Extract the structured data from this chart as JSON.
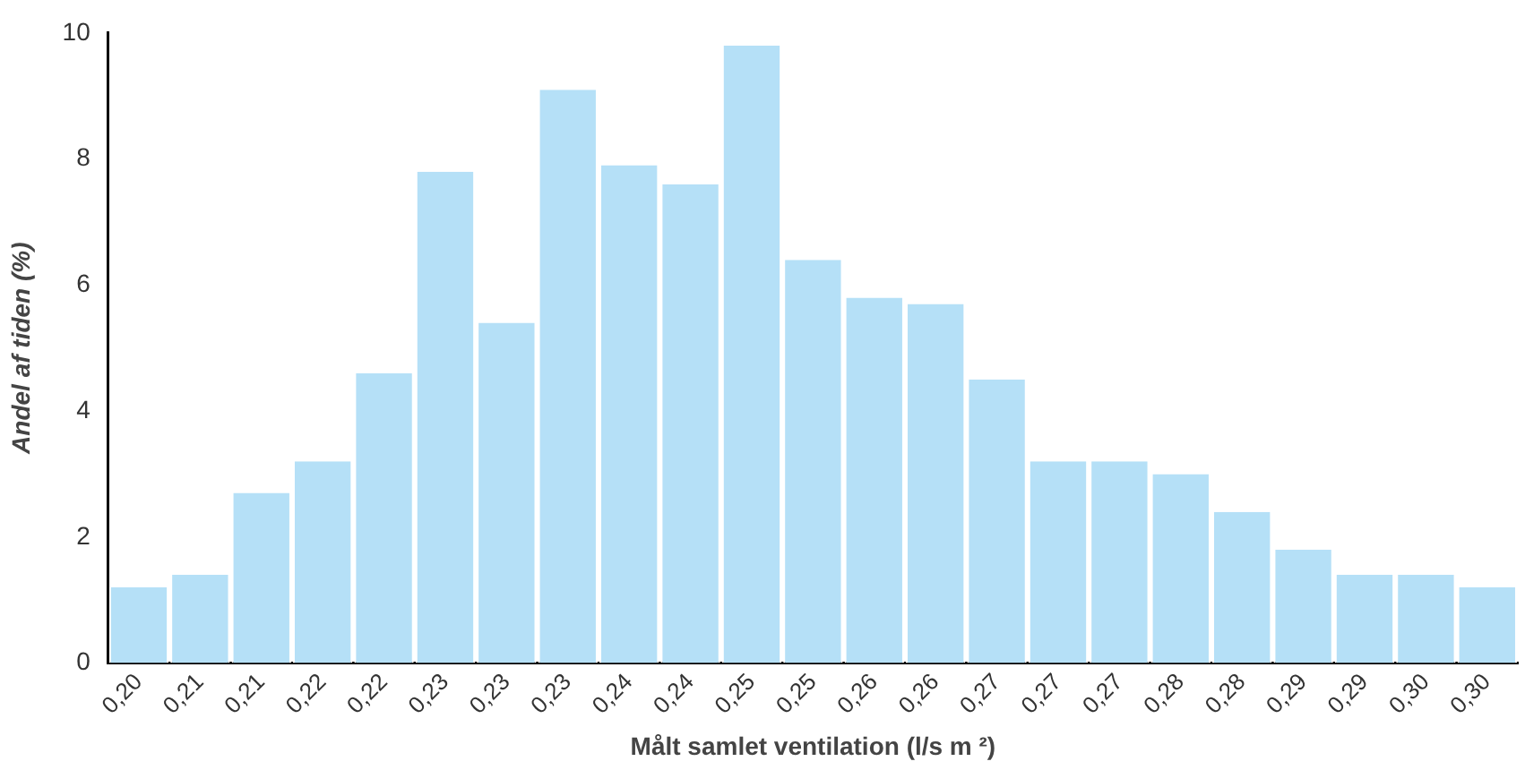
{
  "chart_data": {
    "type": "bar",
    "xlabel": "Målt samlet ventilation (l/s m ²)",
    "ylabel": "Andel af tiden (%)",
    "categories": [
      "0,20",
      "0,21",
      "0,21",
      "0,22",
      "0,22",
      "0,23",
      "0,23",
      "0,23",
      "0,24",
      "0,24",
      "0,25",
      "0,25",
      "0,26",
      "0,26",
      "0,27",
      "0,27",
      "0,27",
      "0,28",
      "0,28",
      "0,29",
      "0,29",
      "0,30",
      "0,30"
    ],
    "values": [
      1.2,
      1.4,
      2.7,
      3.2,
      4.6,
      7.8,
      5.4,
      9.1,
      7.9,
      7.6,
      9.8,
      6.4,
      5.8,
      5.7,
      4.5,
      3.2,
      3.2,
      3.0,
      2.4,
      1.8,
      1.4,
      1.4,
      1.2
    ],
    "color": "#b5e0f7",
    "ylim": [
      0,
      10
    ],
    "yticks": [
      0,
      2,
      4,
      6,
      8,
      10
    ],
    "grid": false,
    "legend": false
  }
}
